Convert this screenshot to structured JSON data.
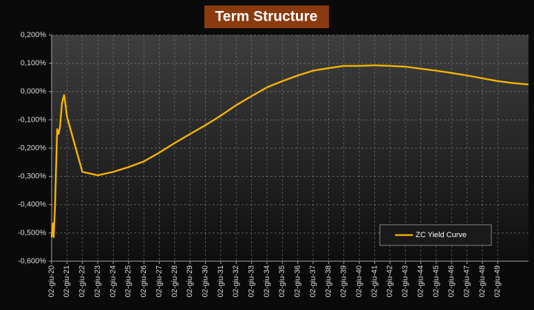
{
  "chart_data": {
    "type": "line",
    "title": "Term Structure",
    "x": [
      "2020-06-02",
      "2020-07-05",
      "2020-07-20",
      "2020-08-22",
      "2020-10-12",
      "2020-11-14",
      "2020-12-17",
      "2021-02-03",
      "2021-03-25",
      "2021-04-27",
      "2021-06-02",
      "2022-06-02",
      "2023-06-02",
      "2024-06-02",
      "2025-06-02",
      "2026-06-02",
      "2027-06-02",
      "2028-06-02",
      "2029-06-02",
      "2030-06-02",
      "2031-06-02",
      "2032-06-02",
      "2033-06-02",
      "2034-06-02",
      "2035-06-02",
      "2036-06-02",
      "2037-06-02",
      "2038-06-02",
      "2039-06-02",
      "2040-06-02",
      "2041-06-02",
      "2042-06-02",
      "2043-06-02",
      "2044-06-02",
      "2045-06-02",
      "2046-06-02",
      "2047-06-02",
      "2048-06-02",
      "2049-06-02",
      "2050-06-02",
      "2051-06-02"
    ],
    "series": [
      {
        "name": "ZC Yield Curve",
        "color": "#f5b400",
        "values": [
          -0.515,
          -0.466,
          -0.515,
          -0.405,
          -0.133,
          -0.15,
          -0.126,
          -0.041,
          -0.012,
          -0.046,
          -0.089,
          -0.284,
          -0.296,
          -0.284,
          -0.267,
          -0.247,
          -0.216,
          -0.182,
          -0.15,
          -0.119,
          -0.085,
          -0.048,
          -0.016,
          0.015,
          0.037,
          0.057,
          0.074,
          0.083,
          0.091,
          0.091,
          0.093,
          0.091,
          0.088,
          0.081,
          0.074,
          0.066,
          0.057,
          0.047,
          0.037,
          0.03,
          0.025
        ]
      }
    ],
    "xlim": [
      "2020-06-02",
      "2051-06-02"
    ],
    "xticks": [
      {
        "value": "2020-06-02",
        "label": "02-giu-20"
      },
      {
        "value": "2021-06-02",
        "label": "02-giu-21"
      },
      {
        "value": "2022-06-02",
        "label": "02-giu-22"
      },
      {
        "value": "2023-06-02",
        "label": "02-giu-23"
      },
      {
        "value": "2024-06-02",
        "label": "02-giu-24"
      },
      {
        "value": "2025-06-02",
        "label": "02-giu-25"
      },
      {
        "value": "2026-06-02",
        "label": "02-giu-26"
      },
      {
        "value": "2027-06-02",
        "label": "02-giu-27"
      },
      {
        "value": "2028-06-02",
        "label": "02-giu-28"
      },
      {
        "value": "2029-06-02",
        "label": "02-giu-29"
      },
      {
        "value": "2030-06-02",
        "label": "02-giu-30"
      },
      {
        "value": "2031-06-02",
        "label": "02-giu-31"
      },
      {
        "value": "2032-06-02",
        "label": "02-giu-32"
      },
      {
        "value": "2033-06-02",
        "label": "02-giu-33"
      },
      {
        "value": "2034-06-02",
        "label": "02-giu-34"
      },
      {
        "value": "2035-06-02",
        "label": "02-giu-35"
      },
      {
        "value": "2036-06-02",
        "label": "02-giu-36"
      },
      {
        "value": "2037-06-02",
        "label": "02-giu-37"
      },
      {
        "value": "2038-06-02",
        "label": "02-giu-38"
      },
      {
        "value": "2039-06-02",
        "label": "02-giu-39"
      },
      {
        "value": "2040-06-02",
        "label": "02-giu-40"
      },
      {
        "value": "2041-06-02",
        "label": "02-giu-41"
      },
      {
        "value": "2042-06-02",
        "label": "02-giu-42"
      },
      {
        "value": "2043-06-02",
        "label": "02-giu-43"
      },
      {
        "value": "2044-06-02",
        "label": "02-giu-44"
      },
      {
        "value": "2045-06-02",
        "label": "02-giu-45"
      },
      {
        "value": "2046-06-02",
        "label": "02-giu-46"
      },
      {
        "value": "2047-06-02",
        "label": "02-giu-47"
      },
      {
        "value": "2048-06-02",
        "label": "02-giu-48"
      },
      {
        "value": "2049-06-02",
        "label": "02-giu-49"
      }
    ],
    "ylim": [
      -0.6,
      0.2
    ],
    "yticks": [
      {
        "value": -0.6,
        "label": "-0,600%"
      },
      {
        "value": -0.5,
        "label": "-0,500%"
      },
      {
        "value": -0.4,
        "label": "-0,400%"
      },
      {
        "value": -0.3,
        "label": "-0,300%"
      },
      {
        "value": -0.2,
        "label": "-0,200%"
      },
      {
        "value": -0.1,
        "label": "-0,100%"
      },
      {
        "value": 0,
        "label": "0,000%"
      },
      {
        "value": 0.1,
        "label": "0,100%"
      },
      {
        "value": 0.2,
        "label": "0,200%"
      }
    ],
    "grid": true,
    "legend": "lower right"
  }
}
